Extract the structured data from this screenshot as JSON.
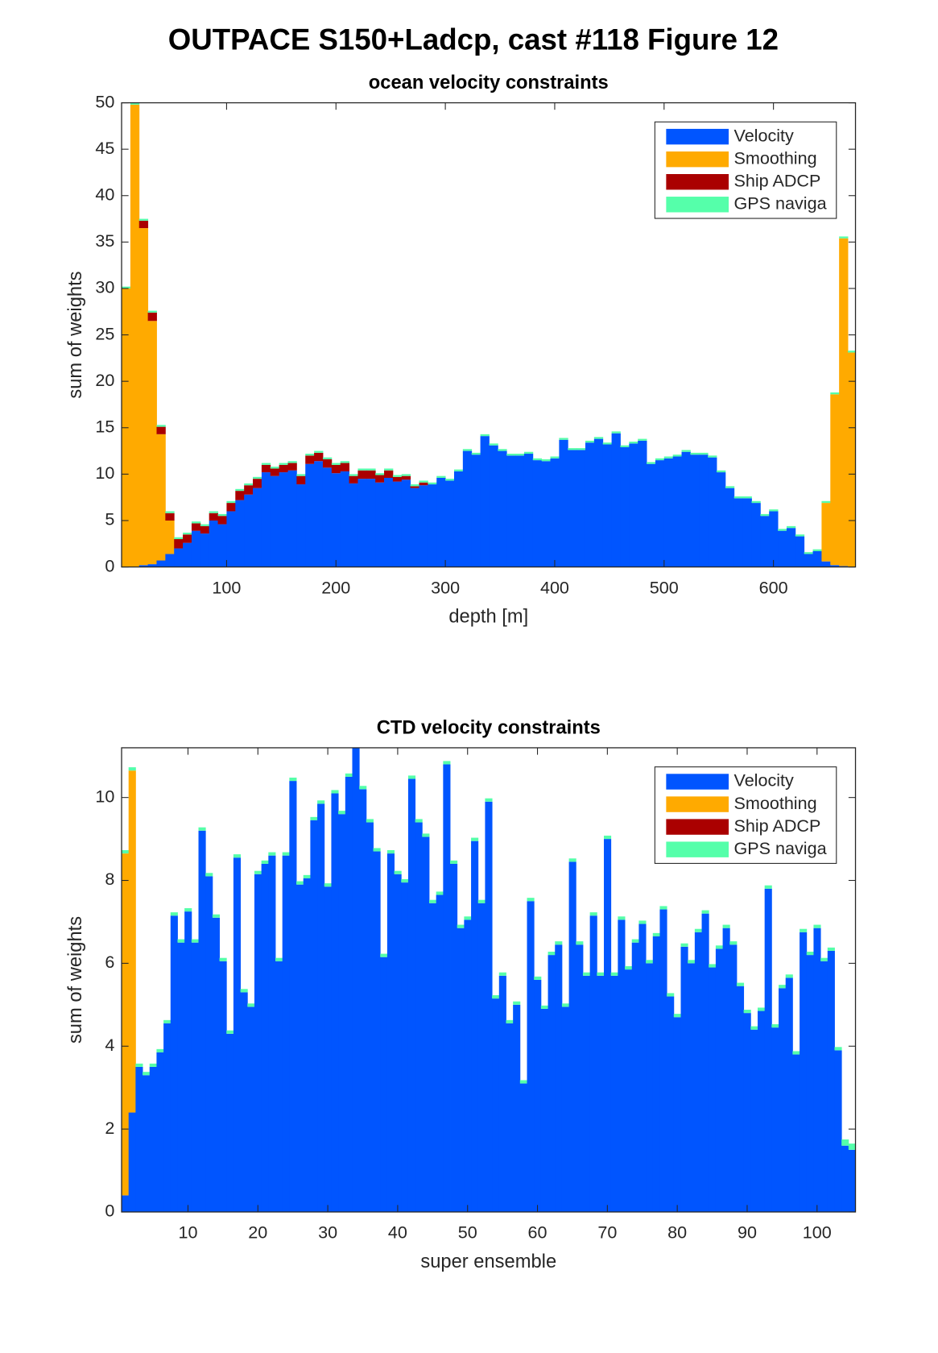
{
  "figure_title": "OUTPACE S150+Ladcp, cast #118  Figure 12",
  "chart_data": [
    {
      "type": "bar",
      "stacked": true,
      "title": "ocean velocity constraints",
      "xlabel": "depth [m]",
      "ylabel": "sum of weights",
      "legend": "upper right",
      "x": [
        8,
        16,
        24,
        32,
        40,
        48,
        56,
        64,
        72,
        80,
        88,
        96,
        104,
        112,
        120,
        128,
        136,
        144,
        152,
        160,
        168,
        176,
        184,
        192,
        200,
        208,
        216,
        224,
        232,
        240,
        248,
        256,
        264,
        272,
        280,
        288,
        296,
        304,
        312,
        320,
        328,
        336,
        344,
        352,
        360,
        368,
        376,
        384,
        392,
        400,
        408,
        416,
        424,
        432,
        440,
        448,
        456,
        464,
        472,
        480,
        488,
        496,
        504,
        512,
        520,
        528,
        536,
        544,
        552,
        560,
        568,
        576,
        584,
        592,
        600,
        608,
        616,
        624,
        632,
        640,
        648,
        656,
        664,
        672
      ],
      "series": [
        {
          "name": "Velocity",
          "color": "#0055ff",
          "values": [
            0,
            0,
            0.2,
            0.3,
            0.7,
            1.4,
            2.0,
            2.6,
            3.9,
            3.6,
            5.0,
            4.6,
            6.0,
            7.2,
            7.8,
            8.5,
            10.2,
            9.8,
            10.2,
            10.4,
            8.9,
            11.1,
            11.4,
            10.7,
            10.1,
            10.3,
            9.0,
            9.5,
            9.5,
            9.1,
            9.6,
            9.2,
            9.4,
            8.5,
            8.8,
            8.9,
            9.6,
            9.3,
            10.3,
            12.5,
            12.1,
            14.1,
            13.1,
            12.5,
            12.0,
            12.0,
            12.2,
            11.5,
            11.4,
            11.7,
            13.7,
            12.6,
            12.6,
            13.4,
            13.8,
            13.2,
            14.4,
            12.9,
            13.3,
            13.6,
            11.1,
            11.5,
            11.7,
            11.9,
            12.4,
            12.1,
            12.1,
            11.8,
            10.2,
            8.5,
            7.4,
            7.4,
            6.9,
            5.5,
            6.0,
            3.9,
            4.2,
            3.3,
            1.4,
            1.7,
            0.6,
            0.2,
            0.1,
            0
          ]
        },
        {
          "name": "Smoothing",
          "color": "#ffaa00",
          "values": [
            30,
            49.8,
            36.3,
            26.2,
            13.6,
            3.6,
            0,
            0,
            0,
            0,
            0,
            0,
            0,
            0,
            0,
            0,
            0,
            0,
            0,
            0,
            0,
            0,
            0,
            0,
            0,
            0,
            0,
            0,
            0,
            0,
            0,
            0,
            0,
            0,
            0,
            0,
            0,
            0,
            0,
            0,
            0,
            0,
            0,
            0,
            0,
            0,
            0,
            0,
            0,
            0,
            0,
            0,
            0,
            0,
            0,
            0,
            0,
            0,
            0,
            0,
            0,
            0,
            0,
            0,
            0,
            0,
            0,
            0,
            0,
            0,
            0,
            0,
            0,
            0,
            0,
            0,
            0,
            0,
            0,
            0,
            6.3,
            18.4,
            35.3,
            23.1
          ]
        },
        {
          "name": "Ship ADCP",
          "color": "#aa0000",
          "values": [
            0,
            0,
            0.8,
            0.9,
            0.8,
            0.8,
            1.0,
            0.9,
            0.8,
            0.8,
            0.8,
            0.9,
            0.9,
            1.0,
            1.0,
            1.0,
            0.8,
            0.8,
            0.8,
            0.8,
            0.9,
            0.9,
            0.9,
            0.9,
            0.9,
            0.9,
            0.8,
            0.9,
            0.9,
            0.8,
            0.8,
            0.5,
            0.4,
            0.2,
            0.3,
            0,
            0,
            0,
            0,
            0,
            0,
            0,
            0,
            0,
            0,
            0,
            0,
            0,
            0,
            0,
            0,
            0,
            0,
            0,
            0,
            0,
            0,
            0,
            0,
            0,
            0,
            0,
            0,
            0,
            0,
            0,
            0,
            0,
            0,
            0,
            0,
            0,
            0,
            0,
            0,
            0,
            0,
            0,
            0,
            0,
            0,
            0,
            0,
            0
          ]
        },
        {
          "name": "GPS naviga",
          "color": "#55ffaa",
          "values": [
            0.2,
            0.2,
            0.2,
            0.2,
            0.2,
            0.2,
            0.2,
            0.2,
            0.2,
            0.2,
            0.2,
            0.2,
            0.2,
            0.2,
            0.2,
            0.2,
            0.2,
            0.2,
            0.2,
            0.2,
            0.2,
            0.2,
            0.2,
            0.2,
            0.2,
            0.2,
            0.2,
            0.2,
            0.2,
            0.2,
            0.2,
            0.2,
            0.2,
            0.2,
            0.2,
            0.2,
            0.2,
            0.2,
            0.2,
            0.2,
            0.2,
            0.2,
            0.2,
            0.2,
            0.2,
            0.2,
            0.2,
            0.2,
            0.2,
            0.2,
            0.2,
            0.2,
            0.2,
            0.2,
            0.2,
            0.2,
            0.2,
            0.2,
            0.2,
            0.2,
            0.2,
            0.2,
            0.2,
            0.2,
            0.2,
            0.2,
            0.2,
            0.2,
            0.2,
            0.2,
            0.2,
            0.2,
            0.2,
            0.2,
            0.2,
            0.2,
            0.2,
            0.2,
            0.2,
            0.2,
            0.2,
            0.2,
            0.2,
            0.2
          ]
        }
      ],
      "xlim": [
        4,
        675
      ],
      "ylim": [
        0,
        50
      ],
      "xticks": [
        100,
        200,
        300,
        400,
        500,
        600
      ],
      "yticks": [
        0,
        5,
        10,
        15,
        20,
        25,
        30,
        35,
        40,
        45,
        50
      ]
    },
    {
      "type": "bar",
      "stacked": true,
      "title": "CTD velocity constraints",
      "xlabel": "super ensemble",
      "ylabel": "sum of weights",
      "legend": "upper right",
      "x": [
        1,
        2,
        3,
        4,
        5,
        6,
        7,
        8,
        9,
        10,
        11,
        12,
        13,
        14,
        15,
        16,
        17,
        18,
        19,
        20,
        21,
        22,
        23,
        24,
        25,
        26,
        27,
        28,
        29,
        30,
        31,
        32,
        33,
        34,
        35,
        36,
        37,
        38,
        39,
        40,
        41,
        42,
        43,
        44,
        45,
        46,
        47,
        48,
        49,
        50,
        51,
        52,
        53,
        54,
        55,
        56,
        57,
        58,
        59,
        60,
        61,
        62,
        63,
        64,
        65,
        66,
        67,
        68,
        69,
        70,
        71,
        72,
        73,
        74,
        75,
        76,
        77,
        78,
        79,
        80,
        81,
        82,
        83,
        84,
        85,
        86,
        87,
        88,
        89,
        90,
        91,
        92,
        93,
        94,
        95,
        96,
        97,
        98,
        99,
        100,
        101,
        102,
        103,
        104,
        105
      ],
      "series": [
        {
          "name": "Velocity",
          "color": "#0055ff",
          "values": [
            0.4,
            2.4,
            3.5,
            3.3,
            3.5,
            3.85,
            4.55,
            7.15,
            6.5,
            7.25,
            6.5,
            9.2,
            8.1,
            7.1,
            6.05,
            4.3,
            8.55,
            5.3,
            4.95,
            8.15,
            8.4,
            8.6,
            6.05,
            8.6,
            10.4,
            7.9,
            8.05,
            9.45,
            9.85,
            7.85,
            10.1,
            9.6,
            10.5,
            11.2,
            10.2,
            9.4,
            8.7,
            6.15,
            8.65,
            8.15,
            7.95,
            10.45,
            9.4,
            9.05,
            7.45,
            7.65,
            10.8,
            8.4,
            6.85,
            7.05,
            8.95,
            7.45,
            9.9,
            5.15,
            5.7,
            4.55,
            5.0,
            3.1,
            7.5,
            5.6,
            4.9,
            6.2,
            6.45,
            4.95,
            8.45,
            6.45,
            5.7,
            7.15,
            5.7,
            9.0,
            5.7,
            7.05,
            5.85,
            6.5,
            6.95,
            6.0,
            6.65,
            7.3,
            5.2,
            4.7,
            6.4,
            6.0,
            6.75,
            7.2,
            5.9,
            6.35,
            6.85,
            6.45,
            5.45,
            4.8,
            4.4,
            4.85,
            7.8,
            4.45,
            5.4,
            5.65,
            3.8,
            6.75,
            6.2,
            6.85,
            6.05,
            6.3,
            3.9,
            1.6,
            1.5
          ]
        },
        {
          "name": "Smoothing",
          "color": "#ffaa00",
          "values": [
            8.25,
            8.25,
            0,
            0,
            0,
            0,
            0,
            0,
            0,
            0,
            0,
            0,
            0,
            0,
            0,
            0,
            0,
            0,
            0,
            0,
            0,
            0,
            0,
            0,
            0,
            0,
            0,
            0,
            0,
            0,
            0,
            0,
            0,
            0,
            0,
            0,
            0,
            0,
            0,
            0,
            0,
            0,
            0,
            0,
            0,
            0,
            0,
            0,
            0,
            0,
            0,
            0,
            0,
            0,
            0,
            0,
            0,
            0,
            0,
            0,
            0,
            0,
            0,
            0,
            0,
            0,
            0,
            0,
            0,
            0,
            0,
            0,
            0,
            0,
            0,
            0,
            0,
            0,
            0,
            0,
            0,
            0,
            0,
            0,
            0,
            0,
            0,
            0,
            0,
            0,
            0,
            0,
            0,
            0,
            0,
            0,
            0,
            0,
            0,
            0,
            0,
            0,
            0,
            0,
            0
          ]
        },
        {
          "name": "Ship ADCP",
          "color": "#aa0000",
          "values": [
            0,
            0,
            0,
            0,
            0,
            0,
            0,
            0,
            0,
            0,
            0,
            0,
            0,
            0,
            0,
            0,
            0,
            0,
            0,
            0,
            0,
            0,
            0,
            0,
            0,
            0,
            0,
            0,
            0,
            0,
            0,
            0,
            0,
            0,
            0,
            0,
            0,
            0,
            0,
            0,
            0,
            0,
            0,
            0,
            0,
            0,
            0,
            0,
            0,
            0,
            0,
            0,
            0,
            0,
            0,
            0,
            0,
            0,
            0,
            0,
            0,
            0,
            0,
            0,
            0,
            0,
            0,
            0,
            0,
            0,
            0,
            0,
            0,
            0,
            0,
            0,
            0,
            0,
            0,
            0,
            0,
            0,
            0,
            0,
            0,
            0,
            0,
            0,
            0,
            0,
            0,
            0,
            0,
            0,
            0,
            0,
            0,
            0,
            0,
            0,
            0,
            0,
            0,
            0,
            0
          ]
        },
        {
          "name": "GPS naviga",
          "color": "#55ffaa",
          "values": [
            0.08,
            0.08,
            0.08,
            0.08,
            0.08,
            0.08,
            0.08,
            0.08,
            0.08,
            0.08,
            0.08,
            0.08,
            0.08,
            0.08,
            0.08,
            0.08,
            0.08,
            0.08,
            0.08,
            0.08,
            0.08,
            0.08,
            0.08,
            0.08,
            0.08,
            0.08,
            0.08,
            0.08,
            0.08,
            0.08,
            0.08,
            0.08,
            0.08,
            0.08,
            0.08,
            0.08,
            0.08,
            0.08,
            0.08,
            0.08,
            0.08,
            0.08,
            0.08,
            0.08,
            0.08,
            0.08,
            0.08,
            0.08,
            0.08,
            0.08,
            0.08,
            0.08,
            0.08,
            0.08,
            0.08,
            0.08,
            0.08,
            0.08,
            0.08,
            0.08,
            0.08,
            0.08,
            0.08,
            0.08,
            0.08,
            0.08,
            0.08,
            0.08,
            0.08,
            0.08,
            0.08,
            0.08,
            0.08,
            0.08,
            0.08,
            0.08,
            0.08,
            0.08,
            0.08,
            0.08,
            0.08,
            0.08,
            0.08,
            0.08,
            0.08,
            0.08,
            0.08,
            0.08,
            0.08,
            0.08,
            0.08,
            0.08,
            0.08,
            0.08,
            0.08,
            0.08,
            0.08,
            0.08,
            0.08,
            0.08,
            0.08,
            0.08,
            0.08,
            0.15,
            0.15
          ]
        }
      ],
      "xlim": [
        0.5,
        105.5
      ],
      "ylim": [
        0,
        11.2
      ],
      "xticks": [
        10,
        20,
        30,
        40,
        50,
        60,
        70,
        80,
        90,
        100
      ],
      "yticks": [
        0,
        2,
        4,
        6,
        8,
        10
      ]
    }
  ]
}
